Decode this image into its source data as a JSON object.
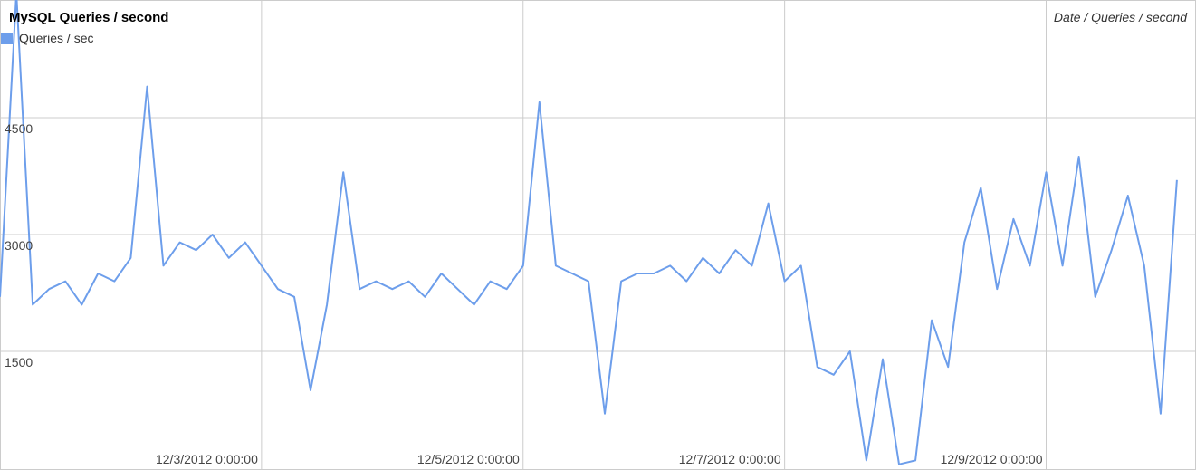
{
  "chart_data": {
    "type": "line",
    "title": "MySQL Queries / second",
    "subtitle": "Date / Queries / second",
    "x": [
      "12/1/2012 0:00:00",
      "12/1/2012 3:00:00",
      "12/1/2012 6:00:00",
      "12/1/2012 9:00:00",
      "12/1/2012 12:00:00",
      "12/1/2012 15:00:00",
      "12/1/2012 18:00:00",
      "12/1/2012 21:00:00",
      "12/2/2012 0:00:00",
      "12/2/2012 3:00:00",
      "12/2/2012 6:00:00",
      "12/2/2012 9:00:00",
      "12/2/2012 12:00:00",
      "12/2/2012 15:00:00",
      "12/2/2012 18:00:00",
      "12/2/2012 21:00:00",
      "12/3/2012 0:00:00",
      "12/3/2012 3:00:00",
      "12/3/2012 6:00:00",
      "12/3/2012 9:00:00",
      "12/3/2012 12:00:00",
      "12/3/2012 15:00:00",
      "12/3/2012 18:00:00",
      "12/3/2012 21:00:00",
      "12/4/2012 0:00:00",
      "12/4/2012 3:00:00",
      "12/4/2012 6:00:00",
      "12/4/2012 9:00:00",
      "12/4/2012 12:00:00",
      "12/4/2012 15:00:00",
      "12/4/2012 18:00:00",
      "12/4/2012 21:00:00",
      "12/5/2012 0:00:00",
      "12/5/2012 3:00:00",
      "12/5/2012 6:00:00",
      "12/5/2012 9:00:00",
      "12/5/2012 12:00:00",
      "12/5/2012 15:00:00",
      "12/5/2012 18:00:00",
      "12/5/2012 21:00:00",
      "12/6/2012 0:00:00",
      "12/6/2012 3:00:00",
      "12/6/2012 6:00:00",
      "12/6/2012 9:00:00",
      "12/6/2012 12:00:00",
      "12/6/2012 15:00:00",
      "12/6/2012 18:00:00",
      "12/6/2012 21:00:00",
      "12/7/2012 0:00:00",
      "12/7/2012 3:00:00",
      "12/7/2012 6:00:00",
      "12/7/2012 9:00:00",
      "12/7/2012 12:00:00",
      "12/7/2012 15:00:00",
      "12/7/2012 18:00:00",
      "12/7/2012 21:00:00",
      "12/8/2012 0:00:00",
      "12/8/2012 3:00:00",
      "12/8/2012 6:00:00",
      "12/8/2012 9:00:00",
      "12/8/2012 12:00:00",
      "12/8/2012 15:00:00",
      "12/8/2012 18:00:00",
      "12/8/2012 21:00:00",
      "12/9/2012 0:00:00",
      "12/9/2012 3:00:00",
      "12/9/2012 6:00:00",
      "12/9/2012 9:00:00",
      "12/9/2012 12:00:00",
      "12/9/2012 15:00:00",
      "12/9/2012 18:00:00",
      "12/9/2012 21:00:00",
      "12/10/2012 0:00:00"
    ],
    "series": [
      {
        "name": "Queries / sec",
        "color": "#6d9eeb",
        "values": [
          2200,
          6100,
          2100,
          2300,
          2400,
          2100,
          2500,
          2400,
          2700,
          4900,
          2600,
          2900,
          2800,
          3000,
          2700,
          2900,
          2600,
          2300,
          2200,
          1000,
          2100,
          3800,
          2300,
          2400,
          2300,
          2400,
          2200,
          2500,
          2300,
          2100,
          2400,
          2300,
          2600,
          4700,
          2600,
          2500,
          2400,
          700,
          2400,
          2500,
          2500,
          2600,
          2400,
          2700,
          2500,
          2800,
          2600,
          3400,
          2400,
          2600,
          1300,
          1200,
          1500,
          100,
          1400,
          50,
          100,
          1900,
          1300,
          2900,
          3600,
          2300,
          3200,
          2600,
          3800,
          2600,
          4000,
          2200,
          2800,
          3500,
          2600,
          700,
          3700
        ]
      }
    ],
    "xlim": [
      "12/1/2012 0:00:00",
      "12/10/2012 3:00:00"
    ],
    "xticks": [
      "12/3/2012 0:00:00",
      "12/5/2012 0:00:00",
      "12/7/2012 0:00:00",
      "12/9/2012 0:00:00"
    ],
    "ylim": [
      0,
      6000
    ],
    "yticks": [
      1500,
      3000,
      4500
    ],
    "grid": true,
    "legend": "top-left"
  }
}
